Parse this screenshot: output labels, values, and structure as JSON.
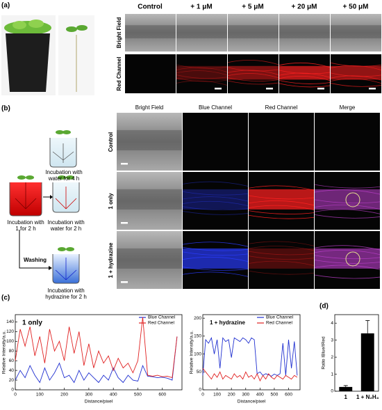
{
  "figure": {
    "panel_labels": [
      "(a)",
      "(b)",
      "(c)",
      "(d)"
    ],
    "a": {
      "columns": [
        "Control",
        "+ 1 μM",
        "+ 5 μM",
        "+ 20 μM",
        "+ 50 μM"
      ],
      "rows": [
        "Bright Field",
        "Red Channel"
      ]
    },
    "b": {
      "columns": [
        "Bright Field",
        "Blue Channel",
        "Red Channel",
        "Merge"
      ],
      "rows": [
        "Control",
        "1 only",
        "1 + hydrazine"
      ],
      "steps": {
        "water4": [
          "Incubation with",
          "water for 4 h"
        ],
        "probe": [
          "Incubation with",
          "1 for 2 h"
        ],
        "water2": [
          "Incubation with",
          "water for 2 h"
        ],
        "washing": "Washing",
        "hydrazine": [
          "Incubation with",
          "hydrazine for 2 h"
        ]
      }
    }
  },
  "chart_data": [
    {
      "type": "line",
      "title": "1 only",
      "xlabel": "Distance/pixel",
      "ylabel": "Relative Intensity/a.u.",
      "x": [
        0,
        20,
        40,
        60,
        80,
        100,
        120,
        140,
        160,
        180,
        200,
        220,
        240,
        260,
        280,
        300,
        320,
        340,
        360,
        380,
        400,
        420,
        440,
        460,
        480,
        500,
        520,
        540,
        560,
        580,
        600,
        620,
        640,
        660
      ],
      "xlim": [
        0,
        680
      ],
      "xticks": [
        0,
        100,
        200,
        300,
        400,
        500,
        600
      ],
      "ylim": [
        0,
        155
      ],
      "yticks": [
        0,
        20,
        40,
        60,
        80,
        100,
        120,
        140
      ],
      "series": [
        {
          "name": "Blue Channel",
          "color": "#1f2fd0",
          "values": [
            20,
            40,
            25,
            50,
            30,
            15,
            45,
            20,
            35,
            55,
            25,
            30,
            15,
            40,
            20,
            35,
            25,
            15,
            30,
            20,
            45,
            25,
            15,
            30,
            20,
            18,
            50,
            28,
            27,
            25,
            26,
            24,
            20,
            110
          ]
        },
        {
          "name": "Red Channel",
          "color": "#e02020",
          "values": [
            60,
            125,
            90,
            130,
            70,
            110,
            55,
            125,
            80,
            100,
            60,
            130,
            75,
            120,
            50,
            95,
            45,
            80,
            55,
            70,
            40,
            65,
            45,
            55,
            35,
            60,
            150,
            30,
            28,
            30,
            27,
            28,
            25,
            110
          ]
        }
      ]
    },
    {
      "type": "line",
      "title": "1 + hydrazine",
      "xlabel": "Distance/pixel",
      "ylabel": "Relative Intensity/a.u.",
      "x": [
        0,
        20,
        40,
        60,
        80,
        100,
        120,
        140,
        160,
        180,
        200,
        220,
        240,
        260,
        280,
        300,
        320,
        340,
        360,
        380,
        400,
        420,
        440,
        460,
        480,
        500,
        520,
        540,
        560,
        580,
        600,
        620,
        640,
        660
      ],
      "xlim": [
        0,
        680
      ],
      "xticks": [
        0,
        100,
        200,
        300,
        400,
        500,
        600
      ],
      "ylim": [
        0,
        210
      ],
      "yticks": [
        0,
        50,
        100,
        150,
        200
      ],
      "series": [
        {
          "name": "Blue Channel",
          "color": "#1f2fd0",
          "values": [
            40,
            140,
            130,
            145,
            100,
            140,
            60,
            145,
            135,
            140,
            90,
            145,
            140,
            135,
            145,
            140,
            130,
            145,
            140,
            45,
            50,
            40,
            45,
            42,
            38,
            44,
            40,
            45,
            130,
            40,
            140,
            60,
            135,
            40
          ]
        },
        {
          "name": "Red Channel",
          "color": "#e02020",
          "values": [
            60,
            50,
            40,
            30,
            45,
            35,
            50,
            30,
            40,
            35,
            30,
            45,
            35,
            40,
            30,
            50,
            35,
            40,
            30,
            45,
            25,
            40,
            30,
            45,
            35,
            30,
            40,
            35,
            30,
            40,
            35,
            30,
            40,
            35
          ]
        }
      ]
    },
    {
      "type": "bar",
      "ylabel": "Ratio IBlue/IRed",
      "categories": [
        "1",
        "1 + N₂H₄"
      ],
      "values": [
        0.25,
        3.4
      ],
      "errors": [
        0.08,
        0.75
      ],
      "color": "#000000",
      "ylim": [
        0,
        4.5
      ],
      "yticks": [
        0,
        1,
        2,
        3,
        4
      ]
    }
  ]
}
